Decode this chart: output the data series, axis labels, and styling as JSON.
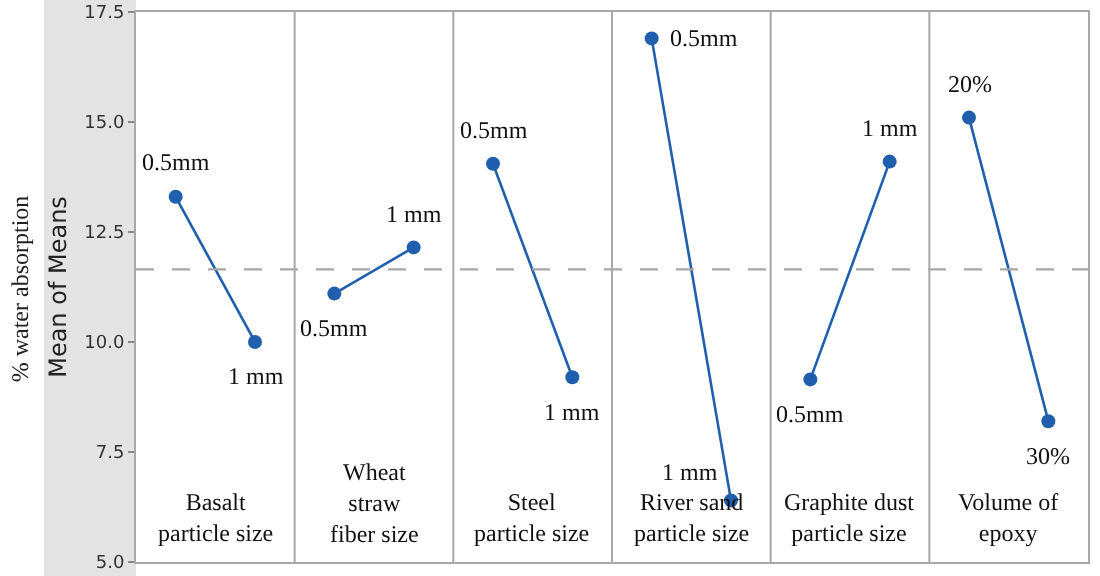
{
  "chart_data": {
    "type": "line",
    "ylabel": "Mean of Means",
    "annotations": [
      "% water absorption",
      "Basalt\nparticle size",
      "Wheat\nstraw\nfiber size",
      "Steel\nparticle size",
      "River sand\nparticle size",
      "Graphite dust\nparticle size",
      "Volume of\nepoxy",
      "0.5mm",
      "1 mm",
      "0.5mm",
      "1 mm",
      "0.5mm",
      "1 mm",
      "0.5mm",
      "1 mm",
      "0.5mm",
      "1 mm",
      "20%",
      "30%"
    ],
    "categories": [
      null,
      null,
      null,
      null,
      null,
      null,
      null,
      null,
      null,
      null,
      null,
      null
    ],
    "series": [
      {
        "color": "#1f5fae",
        "values": [
          13.3,
          10.0,
          null,
          null,
          null,
          null,
          null,
          null,
          null,
          null,
          null,
          null
        ]
      },
      {
        "color": "#1f5fae",
        "values": [
          null,
          null,
          11.1,
          12.15,
          null,
          null,
          null,
          null,
          null,
          null,
          null,
          null
        ]
      },
      {
        "color": "#1f5fae",
        "values": [
          null,
          null,
          null,
          null,
          14.05,
          9.2,
          null,
          null,
          null,
          null,
          null,
          null
        ]
      },
      {
        "color": "#1f5fae",
        "values": [
          null,
          null,
          null,
          null,
          null,
          null,
          16.9,
          6.4,
          null,
          null,
          null,
          null
        ]
      },
      {
        "color": "#1f5fae",
        "values": [
          null,
          null,
          null,
          null,
          null,
          null,
          null,
          null,
          9.15,
          14.1,
          null,
          null
        ]
      },
      {
        "color": "#1f5fae",
        "values": [
          null,
          null,
          null,
          null,
          null,
          null,
          null,
          null,
          null,
          null,
          15.1,
          8.2
        ]
      }
    ],
    "marker": "circle",
    "line_style": "solid",
    "ylim": [
      5,
      17.5
    ],
    "yticks": [
      {
        "value": 5,
        "label": "5.0"
      },
      7.5,
      {
        "value": 10,
        "label": "10.0"
      },
      12.5,
      {
        "value": 15,
        "label": "15.0"
      },
      17.5
    ],
    "tick_labels": "y",
    "ref_lines": [
      {
        "axis": "y",
        "value": 11.65,
        "color": "#a6a6a6",
        "line_style": "dashed"
      }
    ]
  }
}
